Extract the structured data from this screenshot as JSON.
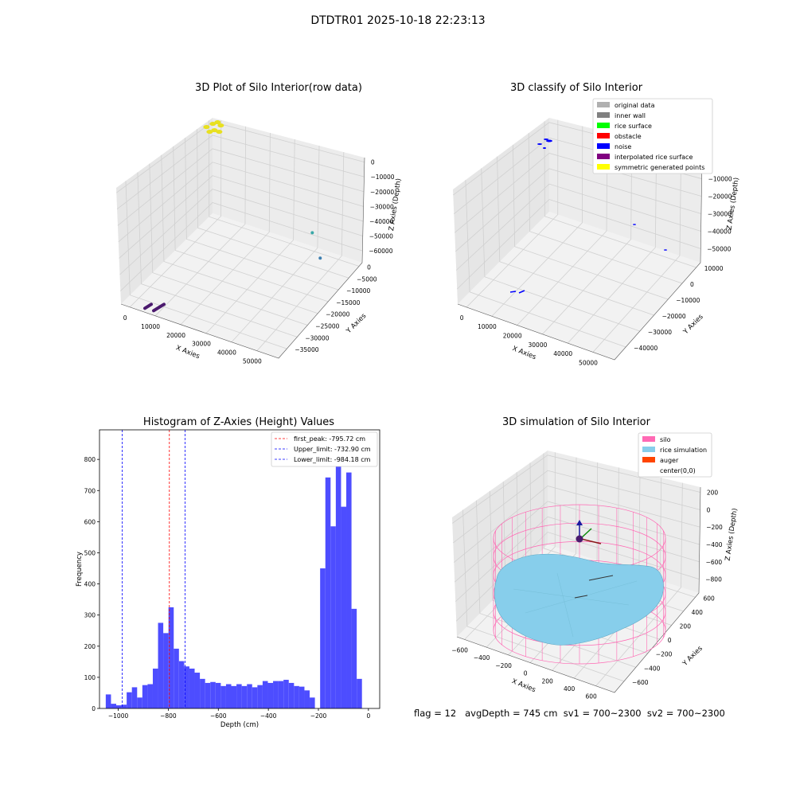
{
  "figure": {
    "suptitle": "DTDTR01 2025-10-18 22:23:13",
    "footer": "flag = 12   avgDepth = 745 cm  sv1 = 700~2300  sv2 = 700~2300"
  },
  "colors": {
    "original_data": "#b0b0b0",
    "inner_wall": "#808080",
    "rice_surface": "#00ff00",
    "obstacle": "#ff0000",
    "noise": "#0000ff",
    "interpolated_rice_surface": "#800080",
    "symmetric_generated_points": "#ffff00",
    "silo": "#ff69b4",
    "rice_simulation": "#87ceeb",
    "auger": "#ff4500",
    "histogram_bar": "#4d4dff"
  },
  "chart_data": [
    {
      "type": "scatter",
      "title": "3D Plot of Silo Interior(row data)",
      "xlabel": "X Axies",
      "ylabel": "Y Axies",
      "zlabel": "Z Axies (Depth)",
      "x_ticks": [
        "0",
        "10000",
        "20000",
        "30000",
        "40000",
        "50000"
      ],
      "y_ticks": [
        "0",
        "−5000",
        "−10000",
        "−15000",
        "−20000",
        "−25000",
        "−30000",
        "−35000"
      ],
      "z_ticks": [
        "0",
        "−10000",
        "−20000",
        "−30000",
        "−40000",
        "−50000",
        "−60000"
      ],
      "clusters": [
        {
          "color": "#e8e020",
          "x": 1000,
          "y": -1000,
          "z": -2000
        },
        {
          "color": "#3aa8a8",
          "x": 43000,
          "y": -12000,
          "z": -28000
        },
        {
          "color": "#3e7fb0",
          "x": 48000,
          "y": -15000,
          "z": -35000
        },
        {
          "color": "#4b1a6e",
          "x": 9000,
          "y": -33000,
          "z": -59000
        }
      ]
    },
    {
      "type": "scatter",
      "title": "3D classify of Silo Interior",
      "xlabel": "X Axies",
      "ylabel": "Y Axies",
      "zlabel": "Z Axies (Depth)",
      "x_ticks": [
        "0",
        "10000",
        "20000",
        "30000",
        "40000",
        "50000"
      ],
      "y_ticks": [
        "10000",
        "0",
        "−10000",
        "−20000",
        "−30000",
        "−40000"
      ],
      "z_ticks": [
        "0",
        "−10000",
        "−20000",
        "−30000",
        "−40000",
        "−50000"
      ],
      "legend": [
        "original data",
        "inner wall",
        "rice surface",
        "obstacle",
        "noise",
        "interpolated rice surface",
        "symmetric generated points"
      ],
      "legend_position": "top-right"
    },
    {
      "type": "bar",
      "title": "Histogram of Z-Axies (Height) Values",
      "xlabel": "Depth (cm)",
      "ylabel": "Frequency",
      "xlim": [
        -1075,
        45
      ],
      "ylim": [
        0,
        895
      ],
      "x_ticks": [
        -1000,
        -800,
        -600,
        -400,
        -200,
        0
      ],
      "y_ticks": [
        0,
        100,
        200,
        300,
        400,
        500,
        600,
        700,
        800
      ],
      "x_tick_labels": [
        "−1000",
        "−800",
        "−600",
        "−400",
        "−200",
        "0"
      ],
      "y_tick_labels": [
        "0",
        "100",
        "200",
        "300",
        "400",
        "500",
        "600",
        "700",
        "800"
      ],
      "bin_start": -1050,
      "bin_width": 20.9,
      "values": [
        45,
        15,
        10,
        12,
        52,
        68,
        35,
        75,
        78,
        128,
        275,
        242,
        325,
        192,
        152,
        135,
        128,
        115,
        95,
        82,
        85,
        82,
        72,
        78,
        72,
        78,
        72,
        78,
        68,
        75,
        88,
        82,
        88,
        88,
        92,
        82,
        72,
        70,
        58,
        35,
        0,
        450,
        742,
        585,
        835,
        648,
        758,
        320,
        95
      ],
      "vlines": [
        {
          "x": -795.72,
          "color": "#ff0000",
          "label": "first_peak: -795.72 cm"
        },
        {
          "x": -732.9,
          "color": "#0000ff",
          "label": "Upper_limit: -732.90 cm"
        },
        {
          "x": -984.18,
          "color": "#0000ff",
          "label": "Lower_limit: -984.18 cm"
        }
      ],
      "legend_position": "top-right"
    },
    {
      "type": "scatter",
      "title": "3D simulation of Silo Interior",
      "xlabel": "X Axies",
      "ylabel": "Y Axies",
      "zlabel": "Z Axies (Depth)",
      "x_ticks": [
        "−600",
        "−400",
        "−200",
        "0",
        "200",
        "400",
        "600"
      ],
      "y_ticks": [
        "600",
        "400",
        "200",
        "0",
        "−200",
        "−400",
        "−600"
      ],
      "z_ticks": [
        "200",
        "0",
        "−200",
        "−400",
        "−600",
        "−800"
      ],
      "legend": [
        "silo",
        "rice simulation",
        "auger",
        "center(0,0)"
      ],
      "legend_position": "top-right"
    }
  ]
}
